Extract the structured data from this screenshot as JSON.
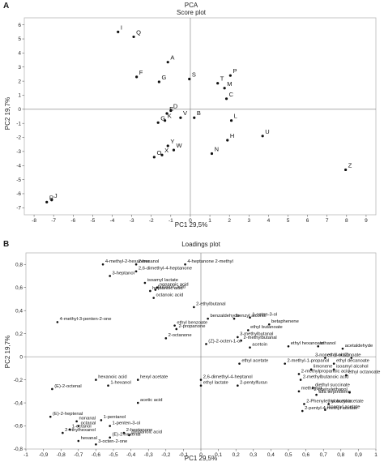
{
  "panels": [
    "A",
    "B"
  ],
  "chart_data": [
    {
      "type": "scatter",
      "title": "PCA",
      "subtitle": "Score plot",
      "xlabel": "PC1 29,5%",
      "ylabel": "PC2 19,7%",
      "xlim": [
        -8.5,
        9.5
      ],
      "ylim": [
        -7.5,
        6.5
      ],
      "xticks": [
        -8,
        -7,
        -6,
        -5,
        -4,
        -3,
        -2,
        -1,
        0,
        1,
        2,
        3,
        4,
        5,
        6,
        7,
        8,
        9
      ],
      "yticks": [
        6,
        5,
        4,
        3,
        2,
        1,
        0,
        -1,
        -2,
        -3,
        -4,
        -5,
        -6,
        -7
      ],
      "points": [
        {
          "label": "I",
          "x": -3.7,
          "y": 5.5
        },
        {
          "label": "Q",
          "x": -2.9,
          "y": 5.15
        },
        {
          "label": "A",
          "x": -1.15,
          "y": 3.35
        },
        {
          "label": "F",
          "x": -2.75,
          "y": 2.3
        },
        {
          "label": "S",
          "x": -0.05,
          "y": 2.15
        },
        {
          "label": "G",
          "x": -1.6,
          "y": 1.95
        },
        {
          "label": "P",
          "x": 2.05,
          "y": 2.4
        },
        {
          "label": "T",
          "x": 1.4,
          "y": 1.85
        },
        {
          "label": "M",
          "x": 1.75,
          "y": 1.5
        },
        {
          "label": "C",
          "x": 1.85,
          "y": 0.75
        },
        {
          "label": "E",
          "x": -1.2,
          "y": -0.3
        },
        {
          "label": "D",
          "x": -1.0,
          "y": -0.1
        },
        {
          "label": "V",
          "x": -0.5,
          "y": -0.6
        },
        {
          "label": "B",
          "x": 0.2,
          "y": -0.6
        },
        {
          "label": "L",
          "x": 2.1,
          "y": -0.8
        },
        {
          "label": "K",
          "x": -1.3,
          "y": -0.8
        },
        {
          "label": "G",
          "x": -1.65,
          "y": -0.95
        },
        {
          "label": "U",
          "x": 3.7,
          "y": -1.9
        },
        {
          "label": "H",
          "x": 1.9,
          "y": -2.2
        },
        {
          "label": "Y",
          "x": -1.15,
          "y": -2.6
        },
        {
          "label": "N",
          "x": 1.1,
          "y": -3.15
        },
        {
          "label": "W",
          "x": -0.85,
          "y": -2.9
        },
        {
          "label": "X",
          "x": -1.45,
          "y": -3.25
        },
        {
          "label": "O",
          "x": -1.85,
          "y": -3.4
        },
        {
          "label": "Z",
          "x": 7.95,
          "y": -4.3
        },
        {
          "label": "J",
          "x": -7.1,
          "y": -6.45
        },
        {
          "label": "R",
          "x": -7.35,
          "y": -6.6
        }
      ]
    },
    {
      "type": "scatter",
      "title": "Loadings plot",
      "xlabel": "PC1 29,5%",
      "ylabel": "PC2 19,7%",
      "xlim": [
        -1,
        1
      ],
      "ylim": [
        -0.8,
        0.9
      ],
      "xticks": [
        -1,
        -0.9,
        -0.8,
        -0.7,
        -0.6,
        -0.5,
        -0.4,
        -0.3,
        -0.2,
        -0.1,
        0,
        0.1,
        0.2,
        0.3,
        0.4,
        0.5,
        0.6,
        0.7,
        0.8,
        0.9,
        1
      ],
      "yticks": [
        0.8,
        0.6,
        0.4,
        0.2,
        0,
        -0.2,
        -0.4,
        -0.6,
        -0.8
      ],
      "yticklabels": [
        "0,8",
        "0,6",
        "0,4",
        "0,2",
        "0",
        "-0,2",
        "-0,4",
        "-0,6",
        "-0,8"
      ],
      "points": [
        {
          "label": "4-methyl-2-hexanone",
          "x": -0.56,
          "y": 0.8
        },
        {
          "label": "2-hexanol",
          "x": -0.37,
          "y": 0.8
        },
        {
          "label": "4-heptanone 2-methyl",
          "x": -0.09,
          "y": 0.8
        },
        {
          "label": "3-heptanol",
          "x": -0.52,
          "y": 0.7
        },
        {
          "label": "2,6-dimethyl-4-heptanone",
          "x": -0.37,
          "y": 0.74
        },
        {
          "label": "isoamyl lactate",
          "x": -0.32,
          "y": 0.64
        },
        {
          "label": "nonanoic acid",
          "x": -0.25,
          "y": 0.6
        },
        {
          "label": "butanoic acid",
          "x": -0.26,
          "y": 0.58
        },
        {
          "label": "heptanoic acid",
          "x": -0.29,
          "y": 0.57
        },
        {
          "label": "octanoic acid",
          "x": -0.27,
          "y": 0.51
        },
        {
          "label": "2-ethylbutanal",
          "x": -0.04,
          "y": 0.43
        },
        {
          "label": "4-methyl-3-penten-2-one",
          "x": -0.82,
          "y": 0.3
        },
        {
          "label": "benzaldehyde",
          "x": 0.04,
          "y": 0.33
        },
        {
          "label": "benzyl alcohol",
          "x": 0.19,
          "y": 0.33
        },
        {
          "label": "1-octen-3-ol",
          "x": 0.28,
          "y": 0.34
        },
        {
          "label": "ethyl benzoate",
          "x": -0.15,
          "y": 0.27
        },
        {
          "label": "2-propanone",
          "x": -0.14,
          "y": 0.24
        },
        {
          "label": "betaphenene",
          "x": 0.39,
          "y": 0.28
        },
        {
          "label": "ethyl butanoate",
          "x": 0.27,
          "y": 0.23
        },
        {
          "label": "3-methylbutanal",
          "x": 0.21,
          "y": 0.17
        },
        {
          "label": "2-methylbutanal",
          "x": 0.23,
          "y": 0.14
        },
        {
          "label": "2-octanone",
          "x": -0.2,
          "y": 0.16
        },
        {
          "label": "(Z)-2-octen-1-ol",
          "x": 0.03,
          "y": 0.11
        },
        {
          "label": "acetoin",
          "x": 0.28,
          "y": 0.08
        },
        {
          "label": "ethyl hexanoate",
          "x": 0.5,
          "y": 0.09
        },
        {
          "label": "ethanol",
          "x": 0.67,
          "y": 0.09
        },
        {
          "label": "acetaldehyde",
          "x": 0.81,
          "y": 0.07
        },
        {
          "label": "ethyl nonanoate",
          "x": 0.71,
          "y": -0.01
        },
        {
          "label": "3-nonen-1-ol (Z)",
          "x": 0.86,
          "y": -0.01
        },
        {
          "label": "ethyl acetate",
          "x": 0.22,
          "y": -0.06
        },
        {
          "label": "2-methyl-1-propanol",
          "x": 0.48,
          "y": -0.06
        },
        {
          "label": "ethyl decanoate",
          "x": 0.76,
          "y": -0.06
        },
        {
          "label": "limonene",
          "x": 0.63,
          "y": -0.11
        },
        {
          "label": "isoamyl alcohol",
          "x": 0.76,
          "y": -0.11
        },
        {
          "label": "2-methylpropanoic acid",
          "x": 0.56,
          "y": -0.15
        },
        {
          "label": "ethyl octanoate",
          "x": 0.83,
          "y": -0.16
        },
        {
          "label": "hexanoic acid",
          "x": -0.6,
          "y": -0.2
        },
        {
          "label": "hexyl acetate",
          "x": -0.36,
          "y": -0.2
        },
        {
          "label": "2,6-dimethyl-4-heptanol",
          "x": 0.0,
          "y": -0.2
        },
        {
          "label": "(E)-2-octenal",
          "x": -0.85,
          "y": -0.28
        },
        {
          "label": "1-hexanol",
          "x": -0.53,
          "y": -0.25
        },
        {
          "label": "ethyl lactate",
          "x": 0.0,
          "y": -0.25
        },
        {
          "label": "2-pentylfuran",
          "x": 0.21,
          "y": -0.25
        },
        {
          "label": "2-methylbutanoic acid",
          "x": 0.57,
          "y": -0.2
        },
        {
          "label": "diethyl succinate",
          "x": 0.64,
          "y": -0.27
        },
        {
          "label": "methionol",
          "x": 0.56,
          "y": -0.3
        },
        {
          "label": "2-phenylethanol",
          "x": 0.85,
          "y": -0.31
        },
        {
          "label": "alfa terpinolene",
          "x": 0.66,
          "y": -0.33
        },
        {
          "label": "acetic acid",
          "x": -0.36,
          "y": -0.4
        },
        {
          "label": "2-Phenylethyl acetate",
          "x": 0.59,
          "y": -0.41
        },
        {
          "label": "isobutyl acetate",
          "x": 0.73,
          "y": -0.41
        },
        {
          "label": "2-pentyl-4-methyl acetate",
          "x": 0.58,
          "y": -0.47
        },
        {
          "label": "isoamyl acetate",
          "x": 0.71,
          "y": -0.46
        },
        {
          "label": "(E)-2-heptenal",
          "x": -0.86,
          "y": -0.52
        },
        {
          "label": "nonanal",
          "x": -0.71,
          "y": -0.56
        },
        {
          "label": "1-pentanol",
          "x": -0.57,
          "y": -0.55
        },
        {
          "label": "octanal",
          "x": -0.7,
          "y": -0.6
        },
        {
          "label": "1-penten-3-ol",
          "x": -0.52,
          "y": -0.6
        },
        {
          "label": "1-octanol",
          "x": -0.75,
          "y": -0.63
        },
        {
          "label": "2-ethylhexanol",
          "x": -0.79,
          "y": -0.66
        },
        {
          "label": "2-heptanone",
          "x": -0.44,
          "y": -0.66
        },
        {
          "label": "propanoic acid",
          "x": -0.41,
          "y": -0.68
        },
        {
          "label": "(E)-2-hexenal",
          "x": -0.52,
          "y": -0.7
        },
        {
          "label": "hexanal",
          "x": -0.7,
          "y": -0.73
        },
        {
          "label": "3-octen-2-one",
          "x": -0.6,
          "y": -0.76
        }
      ]
    }
  ]
}
